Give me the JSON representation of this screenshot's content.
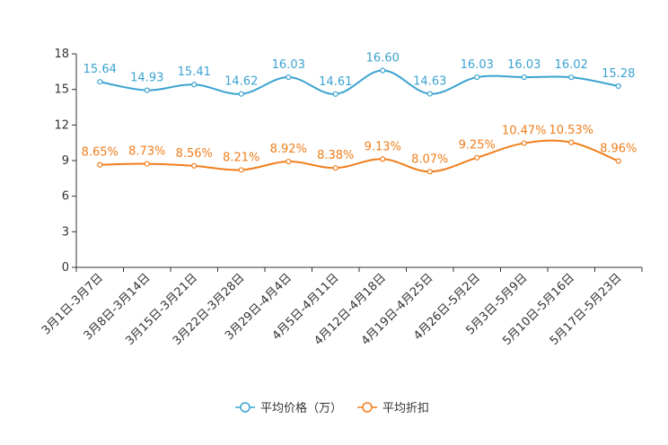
{
  "chart_data": {
    "type": "line",
    "title": "",
    "xlabel": "",
    "ylabel": "",
    "ylim": [
      0,
      18
    ],
    "yticks": [
      "0",
      "3",
      "6",
      "9",
      "12",
      "15",
      "18"
    ],
    "grid": false,
    "legend_position": "bottom-center",
    "categories": [
      "3月1日-3月7日",
      "3月8日-3月14日",
      "3月15日-3月21日",
      "3月22日-3月28日",
      "3月29日-4月4日",
      "4月5日-4月11日",
      "4月12日-4月18日",
      "4月19日-4月25日",
      "4月26日-5月2日",
      "5月3日-5月9日",
      "5月10日-5月16日",
      "5月17日-5月23日"
    ],
    "series": [
      {
        "name": "平均价格（万）",
        "color": "#3ba3d0",
        "values": [
          15.64,
          14.93,
          15.41,
          14.62,
          16.03,
          14.61,
          16.6,
          14.63,
          16.03,
          16.03,
          16.02,
          15.28
        ],
        "labels": [
          "15.64",
          "14.93",
          "15.41",
          "14.62",
          "16.03",
          "14.61",
          "16.60",
          "14.63",
          "16.03",
          "16.03",
          "16.02",
          "15.28"
        ]
      },
      {
        "name": "平均折扣",
        "color": "#f07e1b",
        "values": [
          8.65,
          8.73,
          8.56,
          8.21,
          8.92,
          8.38,
          9.13,
          8.07,
          9.25,
          10.47,
          10.53,
          8.96
        ],
        "labels": [
          "8.65%",
          "8.73%",
          "8.56%",
          "8.21%",
          "8.92%",
          "8.38%",
          "9.13%",
          "8.07%",
          "9.25%",
          "10.47%",
          "10.53%",
          "8.96%"
        ]
      }
    ]
  }
}
